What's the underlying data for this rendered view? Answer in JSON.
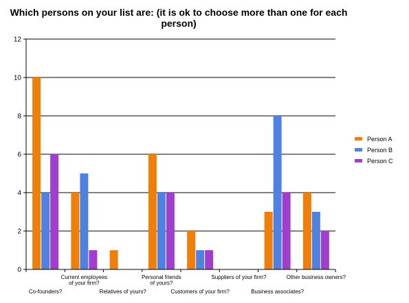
{
  "chart_data": {
    "type": "bar",
    "title_lines": [
      "Which persons on your list are: (it is ok to choose more than one for each",
      "person)"
    ],
    "categories": [
      [
        "Co-founders?"
      ],
      [
        "Current employees",
        "of your firm?"
      ],
      [
        "Relatives of yours?"
      ],
      [
        "Personal friends",
        "of yours?"
      ],
      [
        "Customers of your firm?"
      ],
      [
        "Suppliers of your firm?"
      ],
      [
        "Business associates?"
      ],
      [
        "Other business owners?"
      ]
    ],
    "series": [
      {
        "name": "Person A",
        "color": "#f07f09",
        "values": [
          10,
          4,
          1,
          6,
          2,
          0,
          3,
          4
        ]
      },
      {
        "name": "Person B",
        "color": "#4f81e0",
        "values": [
          4,
          5,
          0,
          4,
          1,
          0,
          8,
          3
        ]
      },
      {
        "name": "Person C",
        "color": "#a03fcf",
        "values": [
          6,
          1,
          0,
          4,
          1,
          0,
          4,
          2
        ]
      }
    ],
    "ylim": [
      0,
      12
    ],
    "yticks": [
      "0",
      "2",
      "4",
      "6",
      "8",
      "10",
      "12"
    ],
    "grid": true,
    "legend_position": "right"
  }
}
